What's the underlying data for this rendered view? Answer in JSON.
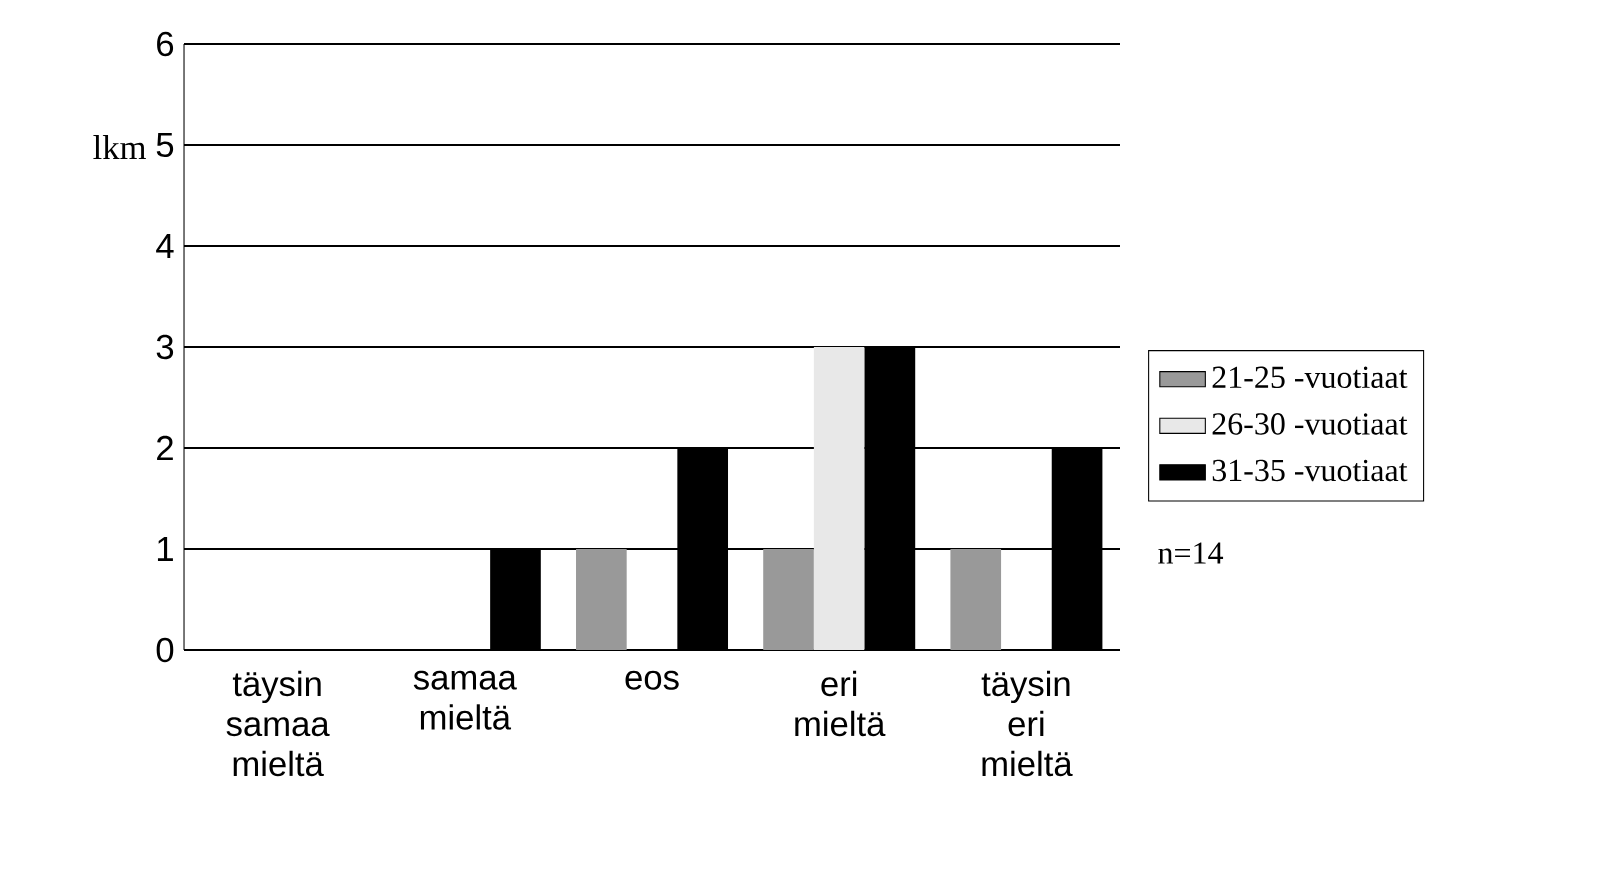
{
  "chart_data": {
    "type": "bar",
    "ylabel": "lkm",
    "categories": [
      "täysin samaa mieltä",
      "samaa mieltä",
      "eos",
      "eri mieltä",
      "täysin eri mieltä"
    ],
    "series": [
      {
        "name": "21-25 -vuotiaat",
        "color": "#999999",
        "values": [
          0,
          0,
          1,
          1,
          1
        ]
      },
      {
        "name": "26-30 -vuotiaat",
        "color": "#e8e8e8",
        "values": [
          0,
          0,
          0,
          3,
          0
        ]
      },
      {
        "name": "31-35 -vuotiaat",
        "color": "#000000",
        "values": [
          0,
          1,
          2,
          3,
          2
        ]
      }
    ],
    "ylim": [
      0,
      6
    ],
    "yticks": [
      0,
      1,
      2,
      3,
      4,
      5,
      6
    ],
    "grid": "y",
    "legend": "right",
    "annotations": [
      "n=14"
    ]
  }
}
